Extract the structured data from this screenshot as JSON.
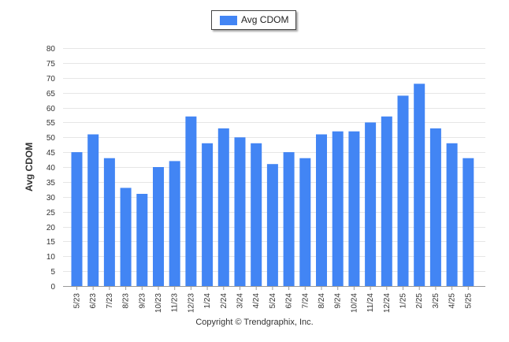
{
  "chart_data": {
    "type": "bar",
    "title": "",
    "xlabel": "",
    "ylabel": "Avg CDOM",
    "ylim": [
      0,
      80
    ],
    "ytick_step": 5,
    "grid": true,
    "legend_position": "top-center",
    "categories": [
      "5/23",
      "6/23",
      "7/23",
      "8/23",
      "9/23",
      "10/23",
      "11/23",
      "12/23",
      "1/24",
      "2/24",
      "3/24",
      "4/24",
      "5/24",
      "6/24",
      "7/24",
      "8/24",
      "9/24",
      "10/24",
      "11/24",
      "12/24",
      "1/25",
      "2/25",
      "3/25",
      "4/25",
      "5/25"
    ],
    "series": [
      {
        "name": "Avg CDOM",
        "color": "#4285f4",
        "values": [
          45,
          51,
          43,
          33,
          31,
          40,
          42,
          57,
          48,
          53,
          50,
          48,
          41,
          45,
          43,
          51,
          52,
          52,
          55,
          57,
          64,
          68,
          53,
          48,
          43
        ]
      }
    ]
  },
  "footer": {
    "copyright": "Copyright © Trendgraphix, Inc."
  }
}
